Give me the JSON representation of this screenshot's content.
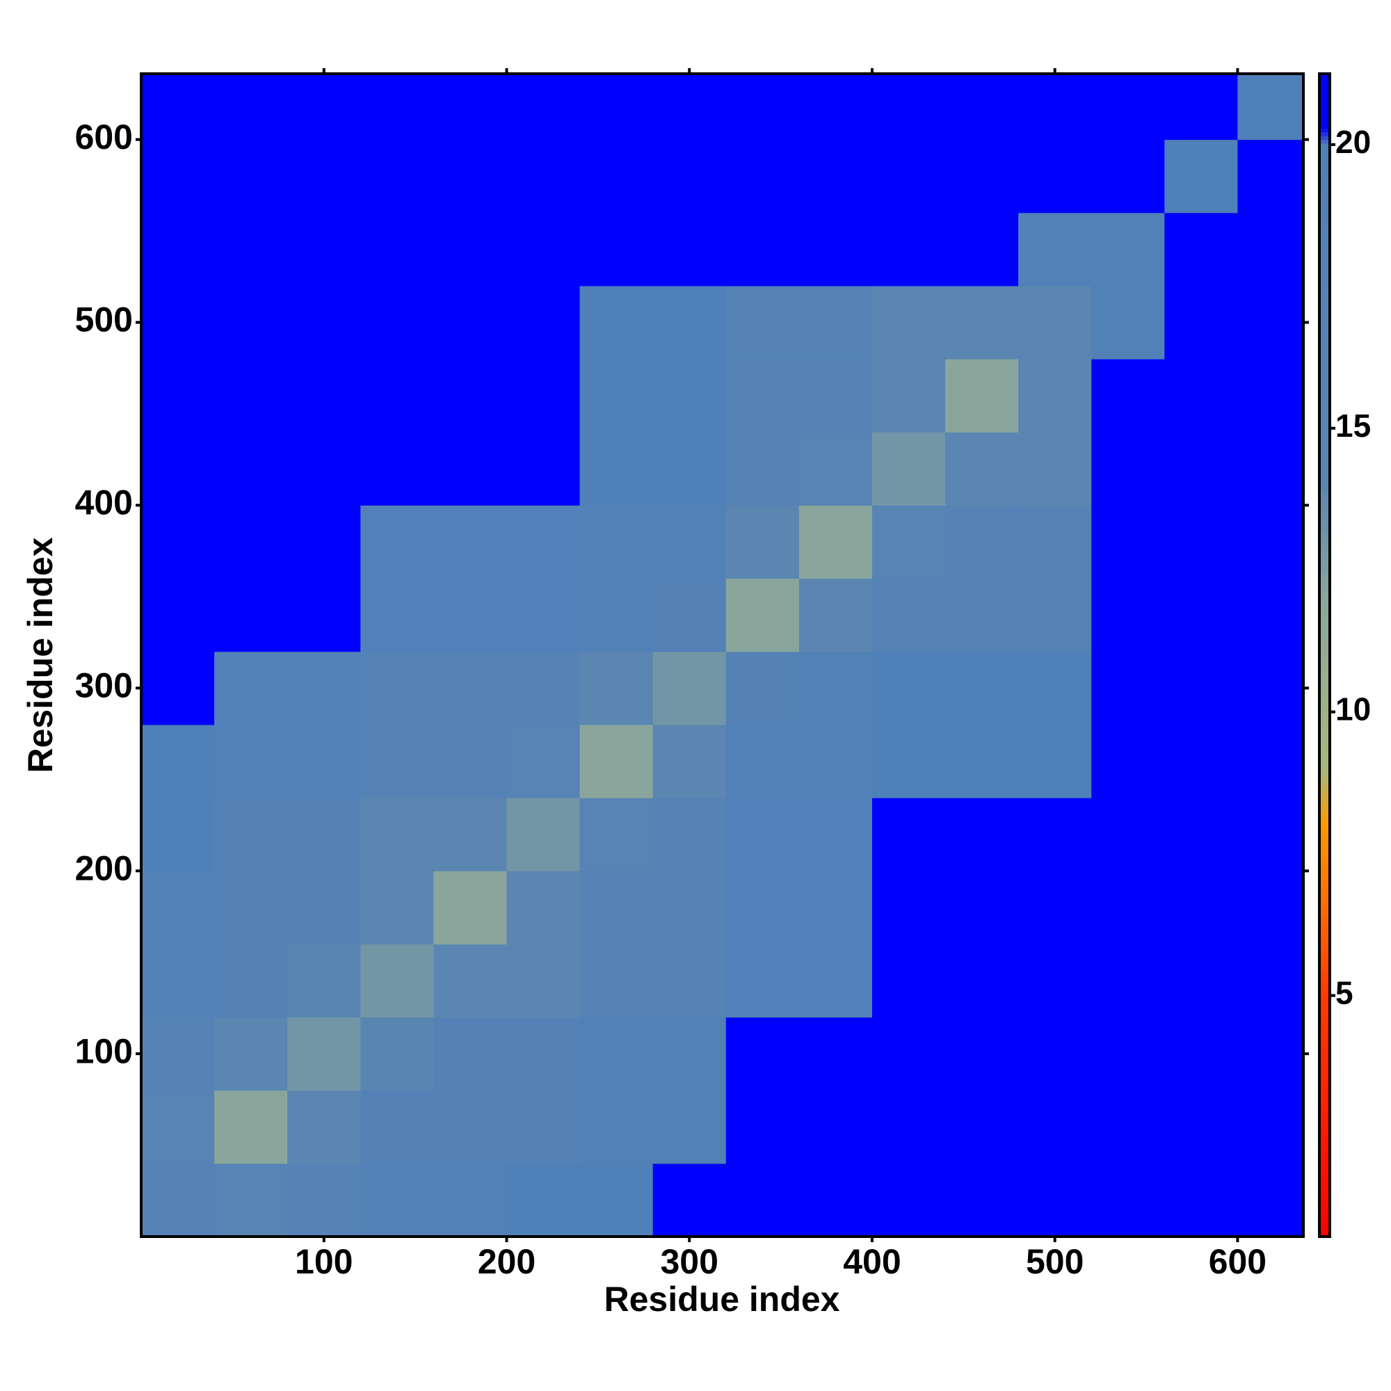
{
  "chart_data": {
    "type": "heatmap",
    "x_label": "Residue index",
    "y_label": "Residue index",
    "x_bins": [
      0,
      40,
      80,
      120,
      160,
      200,
      240,
      280,
      320,
      360,
      400,
      440,
      480,
      520,
      560,
      600,
      636
    ],
    "y_bins": [
      0,
      40,
      80,
      120,
      160,
      200,
      240,
      280,
      320,
      360,
      400,
      440,
      480,
      520,
      560,
      600,
      636
    ],
    "xlim": [
      0,
      636
    ],
    "ylim": [
      0,
      636
    ],
    "xticks": [
      100,
      200,
      300,
      400,
      500,
      600
    ],
    "yticks": [
      100,
      200,
      300,
      400,
      500,
      600
    ],
    "colorlim": [
      0.75,
      21.25
    ],
    "colorbar_ticks": [
      5,
      10,
      15,
      20
    ],
    "colorscale": [
      [
        0.75,
        "#ff0000"
      ],
      [
        5,
        "#ff3a00"
      ],
      [
        8,
        "#ff9900"
      ],
      [
        9,
        "#a9b87c"
      ],
      [
        12,
        "#8aa69c"
      ],
      [
        14,
        "#5b86b2"
      ],
      [
        20,
        "#5080b8"
      ],
      [
        20.3,
        "#0000ff"
      ],
      [
        21.25,
        "#0000ff"
      ]
    ],
    "values": [
      [
        17,
        16,
        17,
        19,
        19,
        20,
        20,
        21,
        21,
        21,
        21,
        21,
        21,
        21,
        21,
        21
      ],
      [
        16,
        12,
        14,
        18,
        18,
        18,
        19,
        19,
        20.5,
        20.5,
        21,
        21,
        21,
        21,
        21,
        21
      ],
      [
        17,
        14,
        13,
        15,
        18,
        18,
        19,
        19,
        20.5,
        20.5,
        21,
        21,
        21,
        21,
        21,
        21
      ],
      [
        19,
        18,
        15,
        13,
        14,
        14,
        17,
        17,
        19.5,
        19.5,
        20.5,
        20.5,
        20.5,
        21,
        21,
        21
      ],
      [
        19,
        18,
        18,
        14,
        12,
        14,
        17,
        17,
        19.5,
        19.5,
        20.5,
        20.5,
        20.5,
        21,
        21,
        21
      ],
      [
        20,
        18,
        18,
        14,
        14,
        13,
        16,
        17,
        19.5,
        19.5,
        20.5,
        20.5,
        20.5,
        21,
        21,
        21
      ],
      [
        20,
        19,
        19,
        17,
        17,
        16,
        12,
        14,
        19,
        19,
        20,
        20,
        20,
        21,
        21,
        21
      ],
      [
        21,
        19,
        19,
        17,
        17,
        17,
        14,
        13,
        18,
        19,
        20,
        20,
        20,
        21,
        21,
        21
      ],
      [
        21,
        20.5,
        20.5,
        19.5,
        19.5,
        19.5,
        19,
        18,
        12,
        14,
        17.5,
        17.5,
        17.5,
        21,
        21,
        21
      ],
      [
        21,
        20.5,
        20.5,
        19.5,
        19.5,
        19.5,
        19,
        19,
        14,
        12,
        16,
        17.5,
        17.5,
        21,
        21,
        21
      ],
      [
        21,
        21,
        21,
        20.5,
        20.5,
        20.5,
        20,
        20,
        17.5,
        16,
        13,
        14,
        14,
        21,
        21,
        21
      ],
      [
        21,
        21,
        21,
        20.5,
        20.5,
        20.5,
        20,
        20,
        17.5,
        17.5,
        14,
        12,
        14,
        21,
        21,
        21
      ],
      [
        21,
        21,
        21,
        20.5,
        20.5,
        20.5,
        20,
        20,
        17.5,
        17.5,
        14,
        14,
        14,
        19,
        21,
        21
      ],
      [
        21,
        21,
        21,
        21,
        21,
        21,
        21,
        21,
        21,
        21,
        21,
        21,
        19,
        19,
        20.5,
        21
      ],
      [
        21,
        21,
        21,
        21,
        21,
        21,
        21,
        21,
        21,
        21,
        21,
        21,
        21,
        20.5,
        20,
        20.5
      ],
      [
        21,
        21,
        21,
        21,
        21,
        21,
        21,
        21,
        21,
        21,
        21,
        21,
        21,
        21,
        20.5,
        20
      ]
    ]
  }
}
